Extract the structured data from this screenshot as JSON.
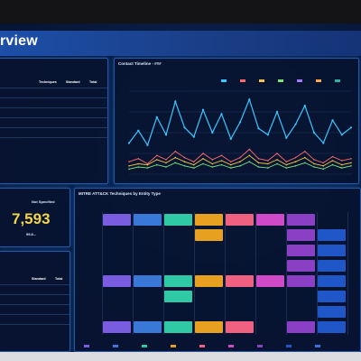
{
  "header": {
    "title": "rview"
  },
  "left_table": {
    "headers": [
      "",
      "Techniques",
      "Standard",
      "Total"
    ],
    "rows": [
      [
        "",
        "",
        "",
        ""
      ],
      [
        "",
        "",
        "",
        ""
      ],
      [
        "",
        "",
        "",
        ""
      ],
      [
        "",
        "",
        "",
        ""
      ],
      [
        "",
        "",
        "",
        ""
      ]
    ]
  },
  "kpi": {
    "label": "Not Specified",
    "value": "7,593",
    "sub": "99.8..."
  },
  "left_table2": {
    "headers": [
      "",
      "Standard",
      "Total"
    ],
    "rows": [
      [
        "",
        "",
        ""
      ],
      [
        "",
        "",
        ""
      ],
      [
        "",
        "",
        ""
      ],
      [
        "",
        "",
        ""
      ]
    ]
  },
  "timeline": {
    "title": "Contact Timeline - ###",
    "legend": [
      "",
      "",
      "",
      "",
      "",
      "",
      ""
    ],
    "colors": [
      "#39c6ff",
      "#ff6b6b",
      "#f5c242",
      "#7be07b",
      "#a27bff",
      "#ffa64d",
      "#2fb3a0"
    ]
  },
  "heatmap": {
    "title": "MITRE ATT&CK Techniques by Entity Type",
    "colors": [
      "#7a5ce0",
      "#3a78d8",
      "#2fc9a6",
      "#e8a020",
      "#f06080",
      "#d04ac8",
      "#8a3fc4",
      "#2057c8",
      "#3a6fe0"
    ]
  },
  "chart_data": {
    "type": "line",
    "title": "Contact Timeline - ###",
    "xlabel": "",
    "ylabel": "",
    "series": [
      {
        "values": [
          30,
          42,
          28,
          55,
          38,
          70,
          45,
          36,
          62,
          40,
          58,
          34,
          50,
          72,
          44,
          38,
          60,
          35,
          48,
          66,
          40,
          30,
          52,
          38,
          45
        ]
      },
      {
        "values": [
          12,
          15,
          10,
          18,
          14,
          22,
          16,
          12,
          20,
          14,
          18,
          12,
          16,
          24,
          15,
          13,
          20,
          12,
          16,
          22,
          14,
          11,
          17,
          13,
          15
        ]
      },
      {
        "values": [
          8,
          10,
          9,
          14,
          11,
          16,
          12,
          9,
          15,
          10,
          13,
          9,
          12,
          18,
          11,
          10,
          14,
          9,
          12,
          16,
          10,
          8,
          13,
          9,
          11
        ]
      },
      {
        "values": [
          5,
          7,
          6,
          9,
          7,
          11,
          8,
          6,
          10,
          7,
          9,
          6,
          8,
          12,
          7,
          6,
          10,
          6,
          8,
          11,
          7,
          5,
          9,
          6,
          8
        ]
      }
    ],
    "ylim": [
      0,
      80
    ]
  }
}
